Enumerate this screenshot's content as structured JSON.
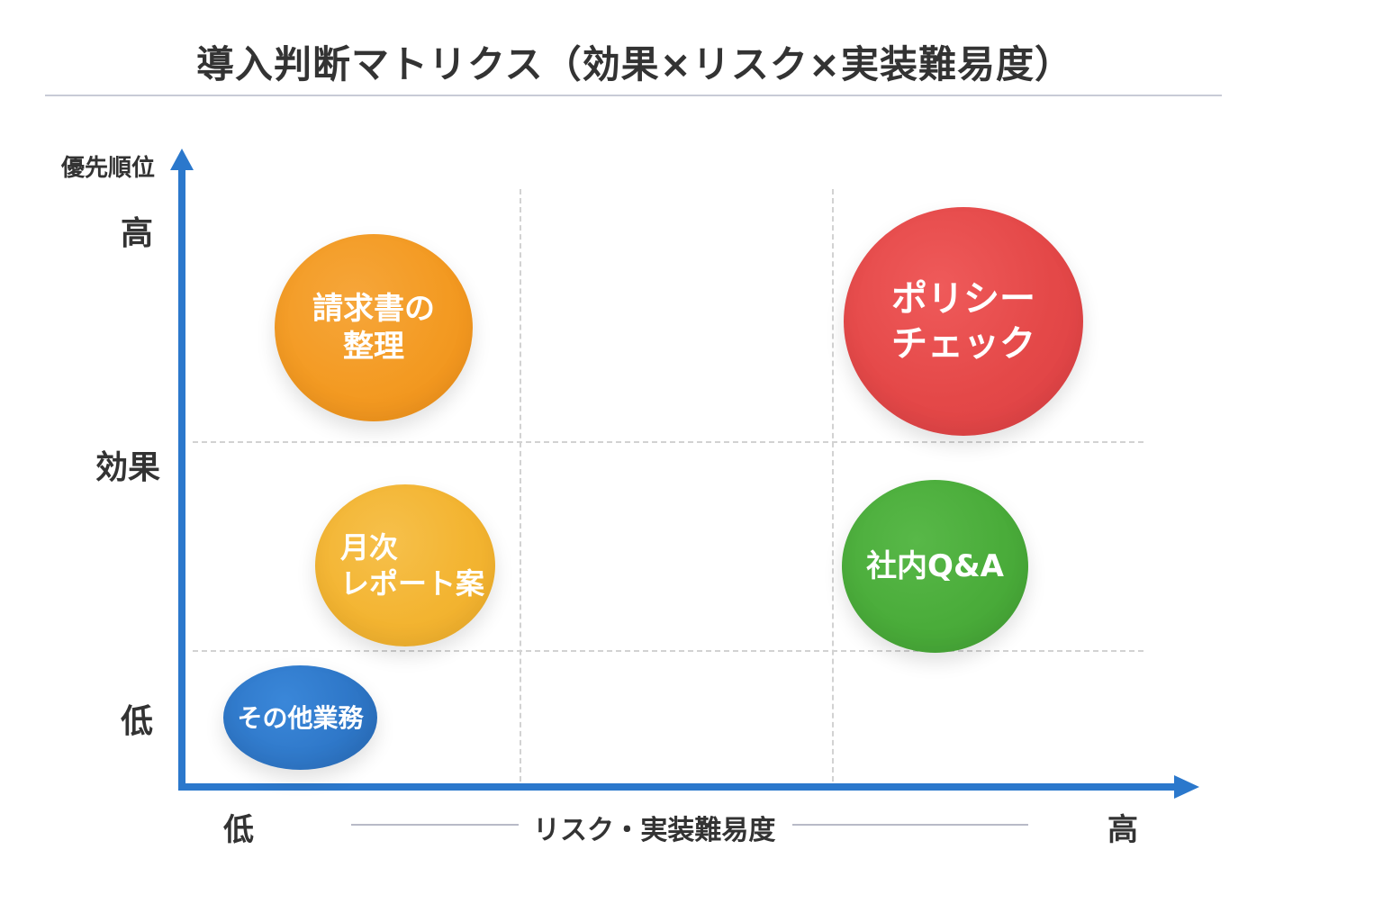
{
  "title": "導入判断マトリクス（効果×リスク×実装難易度）",
  "colors": {
    "axis": "#2b78cc",
    "grid": "#d2d2d2",
    "text": "#333333",
    "invoice_bubble": "#f39a22",
    "policy_bubble": "#e44848",
    "monthly_bubble": "#f3b431",
    "qa_bubble": "#4aac3a",
    "other_bubble": "#2f78c9"
  },
  "y_axis": {
    "title": "優先順位",
    "high": "高",
    "mid": "効果",
    "low": "低"
  },
  "x_axis": {
    "title": "リスク・実装難易度",
    "low": "低",
    "high": "高"
  },
  "bubbles": {
    "invoice": "請求書の\n整理",
    "policy": "ポリシー\nチェック",
    "monthly": "月次\nレポート案",
    "qa": "社内Q&A",
    "other": "その他業務"
  }
}
